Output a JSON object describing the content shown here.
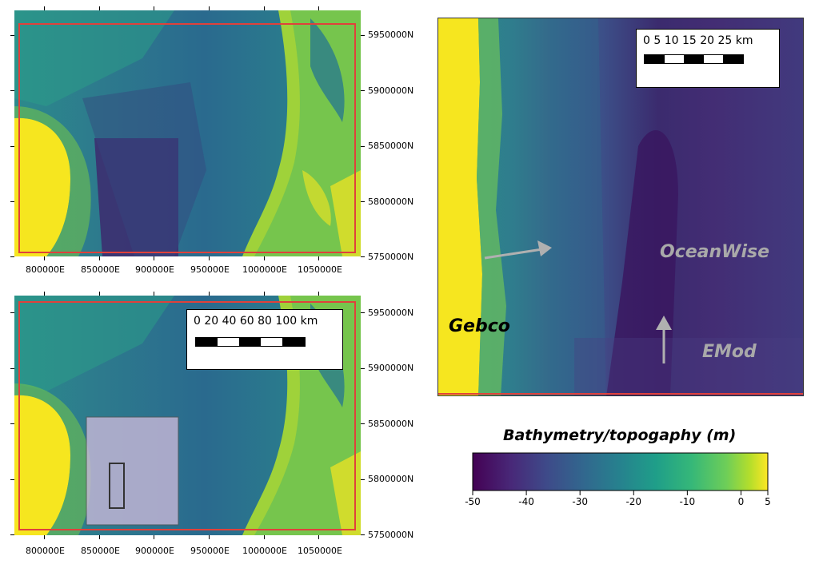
{
  "top_map": {
    "x_ticks": [
      "800000E",
      "850000E",
      "900000E",
      "950000E",
      "1000000E",
      "1050000E"
    ],
    "y_ticks": [
      "5950000N",
      "5900000N",
      "5850000N",
      "5800000N",
      "5750000N"
    ]
  },
  "bottom_map": {
    "x_ticks": [
      "800000E",
      "850000E",
      "900000E",
      "950000E",
      "1000000E",
      "1050000E"
    ],
    "y_ticks": [
      "5950000N",
      "5900000N",
      "5850000N",
      "5800000N",
      "5750000N"
    ],
    "scalebar_label": "0   20   40   60   80  100 km"
  },
  "zoom_map": {
    "scalebar_label": "0    5   10  15  20  25 km",
    "labels": {
      "gebco": "Gebco",
      "oceanwise": "OceanWise",
      "emod": "EMod"
    }
  },
  "colorbar": {
    "title": "Bathymetry/topogaphy (m)",
    "ticks": [
      "-50",
      "-40",
      "-30",
      "-20",
      "-10",
      "0",
      "5"
    ],
    "range": [
      -50,
      5
    ],
    "colormap": "viridis"
  },
  "colors": {
    "frame": "#e0413b",
    "land": "#f6e61f",
    "deep": "#3e1a5c",
    "arrow": "#b0b0b0",
    "label_gray": "#b5b5b5"
  }
}
